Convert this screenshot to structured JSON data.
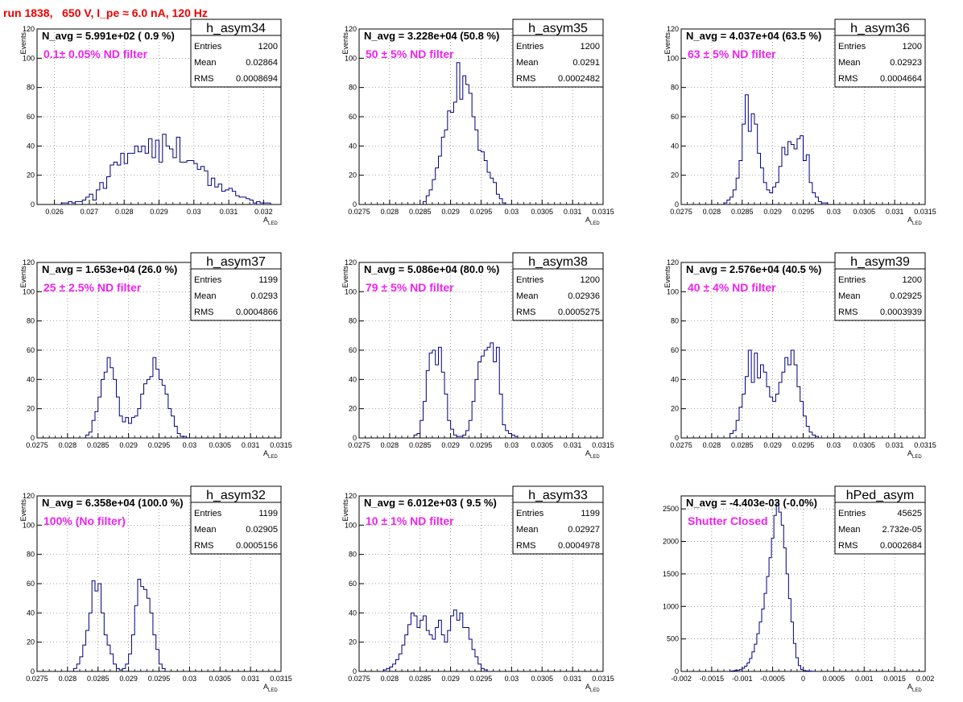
{
  "title": "run 1838,   650 V, I_pe ≈ 6.0 nA, 120 Hz",
  "colors": {
    "title": "#ee0000",
    "annotation": "#ee22ee",
    "histogram": "#000080",
    "grid": "#777777"
  },
  "chart_data": [
    {
      "type": "bar",
      "name": "h_asym34",
      "navg": "N_avg = 5.991e+02 ( 0.9 %)",
      "annotation": "0.1± 0.05% ND filter",
      "xlabel": "A",
      "xlabel_sub": "LED",
      "ylabel": "Events",
      "xlim": [
        0.0255,
        0.0325
      ],
      "ylim": [
        0,
        120
      ],
      "xticks": [
        "0.026",
        "0.027",
        "0.028",
        "0.029",
        "0.03",
        "0.031",
        "0.032"
      ],
      "xtick_values": [
        0.026,
        0.027,
        0.028,
        0.029,
        0.03,
        0.031,
        0.032
      ],
      "yticks": [
        0,
        20,
        40,
        60,
        80,
        100,
        120
      ],
      "stats": [
        [
          "Entries",
          "1200"
        ],
        [
          "Mean",
          "0.02864"
        ],
        [
          "RMS",
          "0.0008694"
        ]
      ],
      "bins_start": 0.0262,
      "bin_width": 0.0001,
      "counts": [
        1,
        1,
        2,
        1,
        2,
        2,
        3,
        5,
        7,
        3,
        10,
        15,
        11,
        19,
        27,
        29,
        27,
        35,
        28,
        35,
        35,
        40,
        36,
        40,
        35,
        45,
        32,
        44,
        29,
        48,
        40,
        38,
        32,
        46,
        29,
        29,
        30,
        30,
        28,
        24,
        26,
        23,
        13,
        18,
        12,
        14,
        9,
        10,
        11,
        9,
        6,
        5,
        5,
        4,
        3,
        1,
        2,
        1,
        1,
        1
      ]
    },
    {
      "type": "bar",
      "name": "h_asym35",
      "navg": "N_avg = 3.228e+04 (50.8 %)",
      "annotation": "50 ± 5% ND filter",
      "xlabel": "A",
      "xlabel_sub": "LED",
      "ylabel": "Events",
      "xlim": [
        0.0275,
        0.0315
      ],
      "ylim": [
        0,
        120
      ],
      "xticks": [
        "0.0275",
        "0.028",
        "0.0285",
        "0.029",
        "0.0295",
        "0.03",
        "0.0305",
        "0.031",
        "0.0315"
      ],
      "xtick_values": [
        0.0275,
        0.028,
        0.0285,
        0.029,
        0.0295,
        0.03,
        0.0305,
        0.031,
        0.0315
      ],
      "yticks": [
        0,
        20,
        40,
        60,
        80,
        100,
        120
      ],
      "stats": [
        [
          "Entries",
          "1200"
        ],
        [
          "Mean",
          "0.0291"
        ],
        [
          "RMS",
          "0.0002482"
        ]
      ],
      "bins_start": 0.02855,
      "bin_width": 5e-05,
      "counts": [
        2,
        6,
        10,
        17,
        25,
        33,
        46,
        51,
        64,
        63,
        70,
        97,
        72,
        88,
        82,
        76,
        60,
        51,
        37,
        36,
        30,
        22,
        18,
        15,
        7,
        4,
        1
      ]
    },
    {
      "type": "bar",
      "name": "h_asym36",
      "navg": "N_avg = 4.037e+04 (63.5 %)",
      "annotation": "63 ± 5% ND filter",
      "xlabel": "A",
      "xlabel_sub": "LED",
      "ylabel": "Events",
      "xlim": [
        0.0275,
        0.0315
      ],
      "ylim": [
        0,
        120
      ],
      "xticks": [
        "0.0275",
        "0.028",
        "0.0285",
        "0.029",
        "0.0295",
        "0.03",
        "0.0305",
        "0.031",
        "0.0315"
      ],
      "xtick_values": [
        0.0275,
        0.028,
        0.0285,
        0.029,
        0.0295,
        0.03,
        0.0305,
        0.031,
        0.0315
      ],
      "yticks": [
        0,
        20,
        40,
        60,
        80,
        100,
        120
      ],
      "stats": [
        [
          "Entries",
          "1200"
        ],
        [
          "Mean",
          "0.02923"
        ],
        [
          "RMS",
          "0.0004664"
        ]
      ],
      "bins_start": 0.0282,
      "bin_width": 5e-05,
      "counts": [
        1,
        3,
        5,
        10,
        18,
        30,
        55,
        75,
        50,
        62,
        55,
        35,
        25,
        15,
        10,
        8,
        12,
        15,
        26,
        39,
        34,
        43,
        41,
        38,
        45,
        47,
        30,
        34,
        15,
        8,
        5,
        2,
        1,
        1
      ]
    },
    {
      "type": "bar",
      "name": "h_asym37",
      "navg": "N_avg = 1.653e+04 (26.0 %)",
      "annotation": "25 ± 2.5% ND filter",
      "xlabel": "A",
      "xlabel_sub": "LED",
      "ylabel": "Events",
      "xlim": [
        0.0275,
        0.0315
      ],
      "ylim": [
        0,
        120
      ],
      "xticks": [
        "0.0275",
        "0.028",
        "0.0285",
        "0.029",
        "0.0295",
        "0.03",
        "0.0305",
        "0.031",
        "0.0315"
      ],
      "xtick_values": [
        0.0275,
        0.028,
        0.0285,
        0.029,
        0.0295,
        0.03,
        0.0305,
        0.031,
        0.0315
      ],
      "yticks": [
        0,
        20,
        40,
        60,
        80,
        100,
        120
      ],
      "stats": [
        [
          "Entries",
          "1199"
        ],
        [
          "Mean",
          "0.0293"
        ],
        [
          "RMS",
          "0.0004866"
        ]
      ],
      "bins_start": 0.0283,
      "bin_width": 5e-05,
      "counts": [
        2,
        4,
        12,
        18,
        28,
        40,
        45,
        55,
        48,
        40,
        28,
        15,
        11,
        14,
        10,
        14,
        15,
        20,
        30,
        37,
        40,
        42,
        55,
        47,
        40,
        36,
        30,
        20,
        15,
        8,
        3,
        1,
        1
      ]
    },
    {
      "type": "bar",
      "name": "h_asym38",
      "navg": "N_avg = 5.086e+04 (80.0 %)",
      "annotation": "79 ± 5% ND filter",
      "xlabel": "A",
      "xlabel_sub": "LED",
      "ylabel": "Events",
      "xlim": [
        0.0275,
        0.0315
      ],
      "ylim": [
        0,
        120
      ],
      "xticks": [
        "0.0275",
        "0.028",
        "0.0285",
        "0.029",
        "0.0295",
        "0.03",
        "0.0305",
        "0.031",
        "0.0315"
      ],
      "xtick_values": [
        0.0275,
        0.028,
        0.0285,
        0.029,
        0.0295,
        0.03,
        0.0305,
        0.031,
        0.0315
      ],
      "yticks": [
        0,
        20,
        40,
        60,
        80,
        100,
        120
      ],
      "stats": [
        [
          "Entries",
          "1200"
        ],
        [
          "Mean",
          "0.02936"
        ],
        [
          "RMS",
          "0.0005275"
        ]
      ],
      "bins_start": 0.0284,
      "bin_width": 5e-05,
      "counts": [
        2,
        3,
        12,
        25,
        46,
        58,
        60,
        50,
        62,
        45,
        30,
        12,
        6,
        2,
        1,
        1,
        2,
        5,
        12,
        25,
        40,
        52,
        56,
        60,
        62,
        65,
        52,
        62,
        30,
        9,
        5,
        3,
        2,
        1
      ]
    },
    {
      "type": "bar",
      "name": "h_asym39",
      "navg": "N_avg = 2.576e+04 (40.5 %)",
      "annotation": "40 ± 4% ND filter",
      "xlabel": "A",
      "xlabel_sub": "LED",
      "ylabel": "Events",
      "xlim": [
        0.0275,
        0.0315
      ],
      "ylim": [
        0,
        120
      ],
      "xticks": [
        "0.0275",
        "0.028",
        "0.0285",
        "0.029",
        "0.0295",
        "0.03",
        "0.0305",
        "0.031",
        "0.0315"
      ],
      "xtick_values": [
        0.0275,
        0.028,
        0.0285,
        0.029,
        0.0295,
        0.03,
        0.0305,
        0.031,
        0.0315
      ],
      "yticks": [
        0,
        20,
        40,
        60,
        80,
        100,
        120
      ],
      "stats": [
        [
          "Entries",
          "1200"
        ],
        [
          "Mean",
          "0.02925"
        ],
        [
          "RMS",
          "0.0003939"
        ]
      ],
      "bins_start": 0.0283,
      "bin_width": 5e-05,
      "counts": [
        3,
        5,
        12,
        21,
        30,
        42,
        60,
        38,
        58,
        41,
        50,
        45,
        35,
        28,
        25,
        30,
        38,
        45,
        55,
        50,
        60,
        50,
        35,
        25,
        15,
        8,
        4,
        2,
        1
      ]
    },
    {
      "type": "bar",
      "name": "h_asym32",
      "navg": "N_avg = 6.358e+04 (100.0 %)",
      "annotation": "100% (No filter)",
      "xlabel": "A",
      "xlabel_sub": "LED",
      "ylabel": "Events",
      "xlim": [
        0.0275,
        0.0315
      ],
      "ylim": [
        0,
        120
      ],
      "xticks": [
        "0.0275",
        "0.028",
        "0.0285",
        "0.029",
        "0.0295",
        "0.03",
        "0.0305",
        "0.031",
        "0.0315"
      ],
      "xtick_values": [
        0.0275,
        0.028,
        0.0285,
        0.029,
        0.0295,
        0.03,
        0.0305,
        0.031,
        0.0315
      ],
      "yticks": [
        0,
        20,
        40,
        60,
        80,
        100,
        120
      ],
      "stats": [
        [
          "Entries",
          "1199"
        ],
        [
          "Mean",
          "0.02905"
        ],
        [
          "RMS",
          "0.0005156"
        ]
      ],
      "bins_start": 0.0281,
      "bin_width": 5e-05,
      "counts": [
        2,
        5,
        10,
        18,
        28,
        40,
        62,
        55,
        60,
        40,
        25,
        18,
        12,
        5,
        2,
        1,
        2,
        5,
        12,
        25,
        45,
        63,
        58,
        56,
        50,
        40,
        25,
        15,
        5,
        2
      ]
    },
    {
      "type": "bar",
      "name": "h_asym33",
      "navg": "N_avg = 6.012e+03 ( 9.5 %)",
      "annotation": "10 ± 1% ND filter",
      "xlabel": "A",
      "xlabel_sub": "LED",
      "ylabel": "Events",
      "xlim": [
        0.0275,
        0.0315
      ],
      "ylim": [
        0,
        120
      ],
      "xticks": [
        "0.0275",
        "0.028",
        "0.0285",
        "0.029",
        "0.0295",
        "0.03",
        "0.0305",
        "0.031",
        "0.0315"
      ],
      "xtick_values": [
        0.0275,
        0.028,
        0.0285,
        0.029,
        0.0295,
        0.03,
        0.0305,
        0.031,
        0.0315
      ],
      "yticks": [
        0,
        20,
        40,
        60,
        80,
        100,
        120
      ],
      "stats": [
        [
          "Entries",
          "1199"
        ],
        [
          "Mean",
          "0.02927"
        ],
        [
          "RMS",
          "0.0004978"
        ]
      ],
      "bins_start": 0.0279,
      "bin_width": 5e-05,
      "counts": [
        1,
        2,
        3,
        5,
        8,
        12,
        18,
        25,
        32,
        40,
        38,
        30,
        35,
        38,
        28,
        25,
        22,
        30,
        35,
        25,
        20,
        28,
        38,
        42,
        35,
        40,
        30,
        30,
        22,
        15,
        10,
        5,
        2,
        1
      ]
    },
    {
      "type": "bar",
      "name": "hPed_asym",
      "navg": "N_avg = -4.403e-03 (-0.0%)",
      "annotation": "Shutter Closed",
      "xlabel": "A",
      "xlabel_sub": "LED",
      "ylabel": "",
      "xlim": [
        -0.002,
        0.002
      ],
      "ylim": [
        0,
        2700
      ],
      "xticks": [
        "-0.002",
        "-0.0015",
        "-0.001",
        "-0.0005",
        "0",
        "0.0005",
        "0.001",
        "0.0015",
        "0.002"
      ],
      "xtick_values": [
        -0.002,
        -0.0015,
        -0.001,
        -0.0005,
        0,
        0.0005,
        0.001,
        0.0015,
        0.002
      ],
      "yticks": [
        0,
        500,
        1000,
        1500,
        2000,
        2500
      ],
      "stats": [
        [
          "Entries",
          "45625"
        ],
        [
          "Mean",
          "2.732e-05"
        ],
        [
          "RMS",
          "0.0002684"
        ]
      ],
      "bins_start": -0.0012,
      "bin_width": 4e-05,
      "counts": [
        5,
        10,
        15,
        20,
        30,
        50,
        80,
        130,
        200,
        300,
        420,
        580,
        760,
        960,
        1200,
        1460,
        1750,
        2050,
        2400,
        2600,
        2450,
        2250,
        1900,
        1500,
        1120,
        760,
        430,
        210,
        90,
        30,
        15,
        8,
        5,
        3,
        2
      ]
    }
  ]
}
